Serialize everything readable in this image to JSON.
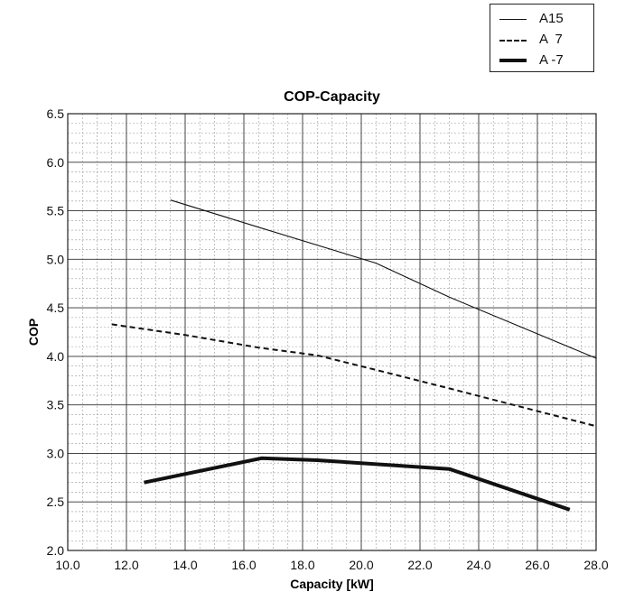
{
  "chart_data": {
    "type": "line",
    "title": "COP-Capacity",
    "xlabel": "Capacity [kW]",
    "ylabel": "COP",
    "xlim": [
      10.0,
      28.0
    ],
    "ylim": [
      2.0,
      6.5
    ],
    "x_ticks": [
      "10.0",
      "12.0",
      "14.0",
      "16.0",
      "18.0",
      "20.0",
      "22.0",
      "24.0",
      "26.0",
      "28.0"
    ],
    "y_ticks": [
      "2.0",
      "2.5",
      "3.0",
      "3.5",
      "4.0",
      "4.5",
      "5.0",
      "5.5",
      "6.0",
      "6.5"
    ],
    "x_major_step": 2.0,
    "x_minor_step": 0.5,
    "y_major_step": 0.5,
    "y_minor_step": 0.1,
    "grid": true,
    "legend_position": "top-right",
    "series": [
      {
        "name": "A15",
        "style": "solid-thin",
        "color": "#111111",
        "points": [
          [
            13.5,
            5.61
          ],
          [
            16.5,
            5.33
          ],
          [
            20.5,
            4.96
          ],
          [
            23.0,
            4.61
          ],
          [
            28.0,
            3.98
          ]
        ]
      },
      {
        "name": "A  7",
        "style": "dashed",
        "color": "#111111",
        "points": [
          [
            11.5,
            4.33
          ],
          [
            14.0,
            4.22
          ],
          [
            16.5,
            4.09
          ],
          [
            18.5,
            4.01
          ],
          [
            20.5,
            3.86
          ],
          [
            23.0,
            3.67
          ],
          [
            28.0,
            3.28
          ]
        ]
      },
      {
        "name": "A -7",
        "style": "solid-thick",
        "color": "#111111",
        "points": [
          [
            12.6,
            2.7
          ],
          [
            16.6,
            2.95
          ],
          [
            18.5,
            2.93
          ],
          [
            23.0,
            2.84
          ],
          [
            27.1,
            2.42
          ]
        ]
      }
    ]
  }
}
